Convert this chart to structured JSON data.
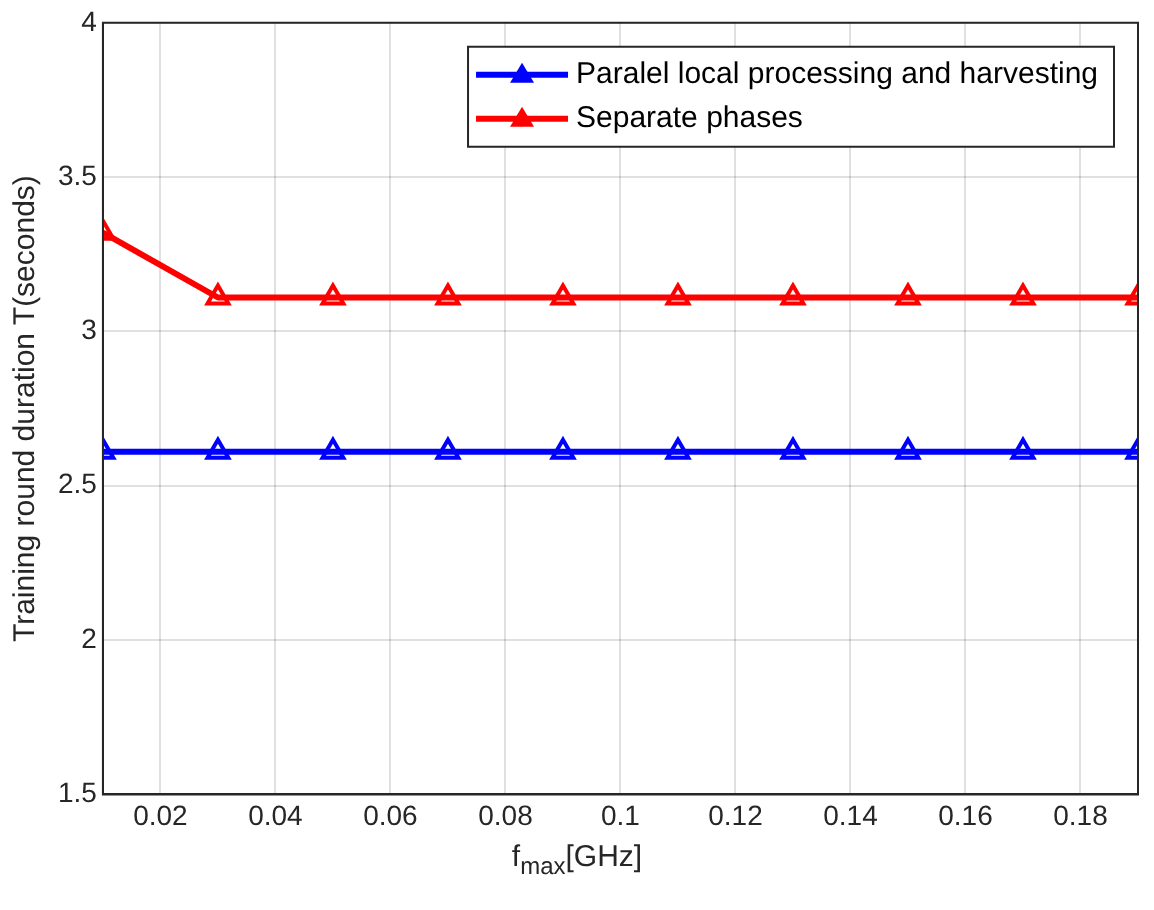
{
  "chart_data": {
    "type": "line",
    "xlabel": "f$_{max}$[GHz]",
    "ylabel": "Training round duration T(seconds)",
    "x": [
      0.01,
      0.03,
      0.05,
      0.07,
      0.09,
      0.11,
      0.13,
      0.15,
      0.17,
      0.19
    ],
    "series": [
      {
        "name": "Paralel local processing and harvesting",
        "color": "#0000ff",
        "values": [
          2.61,
          2.61,
          2.61,
          2.61,
          2.61,
          2.61,
          2.61,
          2.61,
          2.61,
          2.61
        ]
      },
      {
        "name": "Separate phases",
        "color": "#ff0000",
        "values": [
          3.32,
          3.11,
          3.11,
          3.11,
          3.11,
          3.11,
          3.11,
          3.11,
          3.11,
          3.11
        ]
      }
    ],
    "xlim": [
      0.01,
      0.19
    ],
    "xticks": [
      0.02,
      0.04,
      0.06,
      0.08,
      0.1,
      0.12,
      0.14,
      0.16,
      0.18
    ],
    "ylim": [
      1.5,
      4
    ],
    "yticks": [
      1.5,
      2,
      2.5,
      3,
      3.5,
      4
    ],
    "grid": true,
    "legend": "top right",
    "marker": "triangle",
    "line_style": "solid"
  }
}
